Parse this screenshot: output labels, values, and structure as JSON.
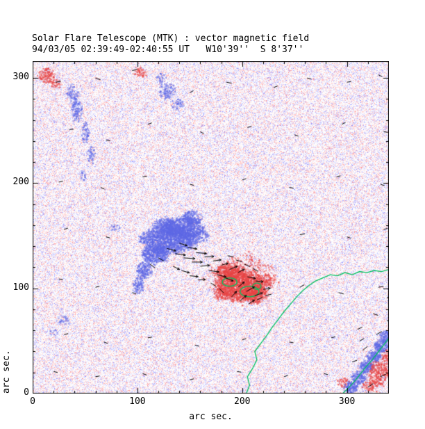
{
  "chart_data": {
    "type": "heatmap",
    "description": "Solar vector magnetogram: red = positive polarity, blue = negative polarity, green = magnetic neutral lines, black segments = transverse field vectors, speckled background = noise-level field",
    "title": "Solar Flare Telescope (MTK) : vector magnetic field",
    "subtitle": "94/03/05 02:39:49-02:40:55 UT   W10'39''  S 8'37''",
    "xlabel": "arc sec.",
    "ylabel": "arc sec.",
    "xlim": [
      0,
      340
    ],
    "ylim": [
      0,
      316
    ],
    "xticks": [
      0,
      100,
      200,
      300
    ],
    "yticks": [
      0,
      100,
      200,
      300
    ],
    "minor_tick_step": 20,
    "seed": 19940305,
    "colors": {
      "positive": "#e84646",
      "negative": "#5f69e6",
      "neutral_line": "#00c060",
      "vector": "#000000",
      "noise_red": "#ffb4b4",
      "noise_blue": "#b4b4ff",
      "axis": "#000000",
      "background": "#ffffff"
    },
    "regions_format": [
      "polarity",
      "cx",
      "cy",
      "rx",
      "ry",
      "density"
    ],
    "regions": [
      [
        -1,
        130,
        147,
        26,
        13,
        3.0
      ],
      [
        -1,
        143,
        158,
        18,
        10,
        2.6
      ],
      [
        -1,
        117,
        133,
        13,
        9,
        2.6
      ],
      [
        -1,
        106,
        118,
        7,
        9,
        2.0
      ],
      [
        -1,
        100,
        103,
        5,
        8,
        1.5
      ],
      [
        -1,
        152,
        168,
        10,
        7,
        1.6
      ],
      [
        -1,
        160,
        151,
        8,
        6,
        1.2
      ],
      [
        -1,
        126,
        160,
        12,
        8,
        1.8
      ],
      [
        -1,
        42,
        270,
        5,
        12,
        1.3
      ],
      [
        -1,
        50,
        248,
        4,
        10,
        1.1
      ],
      [
        -1,
        38,
        286,
        6,
        8,
        1.0
      ],
      [
        -1,
        55,
        228,
        4,
        8,
        0.9
      ],
      [
        -1,
        48,
        208,
        3,
        6,
        0.8
      ],
      [
        -1,
        128,
        288,
        8,
        7,
        1.2
      ],
      [
        -1,
        138,
        276,
        6,
        6,
        0.9
      ],
      [
        -1,
        122,
        300,
        5,
        5,
        0.8
      ],
      [
        -1,
        78,
        158,
        5,
        4,
        0.7
      ],
      [
        -1,
        28,
        70,
        7,
        5,
        0.6
      ],
      [
        -1,
        20,
        58,
        4,
        4,
        0.5
      ],
      [
        -1,
        303,
        6,
        7,
        6,
        2.6
      ],
      [
        -1,
        311,
        16,
        7,
        6,
        2.6
      ],
      [
        -1,
        318,
        26,
        7,
        6,
        2.6
      ],
      [
        -1,
        325,
        36,
        7,
        6,
        2.6
      ],
      [
        -1,
        332,
        46,
        7,
        6,
        2.6
      ],
      [
        -1,
        338,
        55,
        7,
        6,
        2.6
      ],
      [
        1,
        197,
        104,
        22,
        15,
        2.8
      ],
      [
        1,
        185,
        116,
        12,
        8,
        2.0
      ],
      [
        1,
        212,
        95,
        12,
        9,
        2.2
      ],
      [
        1,
        200,
        110,
        32,
        22,
        0.55
      ],
      [
        1,
        222,
        108,
        8,
        6,
        1.0
      ],
      [
        1,
        180,
        95,
        8,
        7,
        1.2
      ],
      [
        1,
        13,
        303,
        8,
        7,
        1.6
      ],
      [
        1,
        22,
        295,
        5,
        5,
        0.9
      ],
      [
        1,
        102,
        306,
        7,
        5,
        0.9
      ],
      [
        1,
        330,
        20,
        10,
        12,
        1.4
      ],
      [
        1,
        322,
        8,
        8,
        6,
        1.2
      ],
      [
        1,
        338,
        35,
        6,
        8,
        1.2
      ],
      [
        1,
        295,
        12,
        6,
        5,
        0.8
      ]
    ],
    "neutral_lines": [
      [
        [
          204,
          0
        ],
        [
          207,
          8
        ],
        [
          205,
          16
        ],
        [
          210,
          24
        ],
        [
          214,
          32
        ],
        [
          212,
          40
        ],
        [
          218,
          48
        ],
        [
          224,
          56
        ],
        [
          228,
          62
        ],
        [
          234,
          70
        ],
        [
          240,
          78
        ],
        [
          247,
          86
        ],
        [
          252,
          92
        ],
        [
          258,
          98
        ],
        [
          264,
          103
        ],
        [
          270,
          107
        ],
        [
          277,
          110
        ],
        [
          284,
          113
        ],
        [
          291,
          112
        ],
        [
          298,
          115
        ],
        [
          305,
          113
        ],
        [
          312,
          116
        ],
        [
          319,
          115
        ],
        [
          326,
          117
        ],
        [
          333,
          116
        ],
        [
          340,
          118
        ]
      ],
      [
        [
          296,
          0
        ],
        [
          303,
          7
        ],
        [
          310,
          15
        ],
        [
          317,
          24
        ],
        [
          324,
          32
        ],
        [
          331,
          41
        ],
        [
          338,
          50
        ],
        [
          340,
          53
        ]
      ]
    ],
    "contour_rings_format": [
      "cx",
      "cy",
      "rx",
      "ry"
    ],
    "contour_rings": [
      [
        188,
        106,
        7,
        4
      ],
      [
        207,
        97,
        9,
        5
      ],
      [
        214,
        102,
        4,
        3
      ]
    ],
    "vectors_format": [
      "x",
      "y",
      "angle_deg",
      "length_arcsec"
    ],
    "vectors": [
      [
        128,
        138,
        -15,
        9
      ],
      [
        136,
        133,
        -8,
        10
      ],
      [
        144,
        129,
        -4,
        11
      ],
      [
        152,
        125,
        0,
        10
      ],
      [
        160,
        121,
        6,
        9
      ],
      [
        168,
        117,
        -8,
        10
      ],
      [
        176,
        113,
        -14,
        9
      ],
      [
        184,
        110,
        -22,
        8
      ],
      [
        140,
        143,
        -18,
        8
      ],
      [
        148,
        139,
        -10,
        9
      ],
      [
        156,
        134,
        -5,
        10
      ],
      [
        164,
        130,
        2,
        9
      ],
      [
        172,
        126,
        8,
        8
      ],
      [
        180,
        122,
        16,
        7
      ],
      [
        188,
        118,
        22,
        8
      ],
      [
        196,
        115,
        28,
        7
      ],
      [
        134,
        121,
        -26,
        7
      ],
      [
        142,
        117,
        -16,
        8
      ],
      [
        150,
        112,
        -6,
        8
      ],
      [
        158,
        108,
        4,
        7
      ],
      [
        120,
        129,
        -30,
        6
      ],
      [
        112,
        123,
        -36,
        6
      ],
      [
        196,
        101,
        40,
        8
      ],
      [
        204,
        97,
        30,
        9
      ],
      [
        212,
        93,
        20,
        8
      ],
      [
        220,
        99,
        10,
        7
      ],
      [
        205,
        111,
        -12,
        8
      ],
      [
        213,
        107,
        -6,
        7
      ],
      [
        190,
        92,
        48,
        7
      ],
      [
        198,
        88,
        42,
        8
      ],
      [
        206,
        85,
        34,
        7
      ],
      [
        214,
        89,
        24,
        6
      ],
      [
        222,
        93,
        14,
        6
      ],
      [
        178,
        100,
        -45,
        6
      ],
      [
        170,
        105,
        -30,
        6
      ],
      [
        186,
        131,
        -10,
        6
      ],
      [
        194,
        127,
        -16,
        6
      ],
      [
        202,
        123,
        -22,
        6
      ],
      [
        210,
        119,
        -28,
        6
      ],
      [
        22,
        296,
        10,
        5
      ],
      [
        60,
        300,
        -20,
        5
      ],
      [
        95,
        307,
        15,
        5
      ],
      [
        150,
        286,
        30,
        4
      ],
      [
        185,
        296,
        -10,
        5
      ],
      [
        230,
        291,
        20,
        4
      ],
      [
        262,
        300,
        -15,
        4
      ],
      [
        300,
        296,
        10,
        4
      ],
      [
        330,
        303,
        -25,
        4
      ],
      [
        35,
        251,
        5,
        4
      ],
      [
        70,
        241,
        -10,
        4
      ],
      [
        110,
        256,
        20,
        4
      ],
      [
        160,
        249,
        -30,
        4
      ],
      [
        205,
        253,
        15,
        4
      ],
      [
        250,
        246,
        -20,
        4
      ],
      [
        295,
        256,
        25,
        4
      ],
      [
        335,
        249,
        -10,
        4
      ],
      [
        25,
        201,
        15,
        4
      ],
      [
        65,
        196,
        -25,
        4
      ],
      [
        105,
        206,
        10,
        4
      ],
      [
        150,
        199,
        -15,
        4
      ],
      [
        200,
        203,
        20,
        4
      ],
      [
        245,
        196,
        -10,
        4
      ],
      [
        290,
        206,
        15,
        4
      ],
      [
        332,
        199,
        -20,
        4
      ],
      [
        30,
        156,
        20,
        4
      ],
      [
        70,
        149,
        -15,
        4
      ],
      [
        255,
        151,
        10,
        5
      ],
      [
        300,
        149,
        -20,
        4
      ],
      [
        335,
        156,
        15,
        4
      ],
      [
        25,
        109,
        -10,
        4
      ],
      [
        60,
        101,
        15,
        4
      ],
      [
        95,
        96,
        -20,
        4
      ],
      [
        255,
        101,
        30,
        5
      ],
      [
        292,
        96,
        -15,
        5
      ],
      [
        330,
        101,
        10,
        5
      ],
      [
        30,
        56,
        15,
        4
      ],
      [
        68,
        49,
        -20,
        4
      ],
      [
        110,
        53,
        10,
        4
      ],
      [
        155,
        46,
        -15,
        4
      ],
      [
        200,
        51,
        20,
        4
      ],
      [
        245,
        49,
        -10,
        4
      ],
      [
        285,
        53,
        15,
        4
      ],
      [
        20,
        21,
        -15,
        4
      ],
      [
        60,
        16,
        10,
        4
      ],
      [
        105,
        19,
        -20,
        4
      ],
      [
        150,
        13,
        15,
        4
      ],
      [
        195,
        21,
        -10,
        4
      ],
      [
        240,
        16,
        20,
        4
      ],
      [
        278,
        19,
        -15,
        4
      ],
      [
        310,
        61,
        25,
        5
      ],
      [
        325,
        76,
        -20,
        5
      ],
      [
        338,
        91,
        15,
        5
      ],
      [
        315,
        41,
        40,
        6
      ],
      [
        328,
        56,
        30,
        6
      ],
      [
        338,
        69,
        20,
        6
      ],
      [
        320,
        6,
        35,
        6
      ],
      [
        332,
        16,
        25,
        6
      ],
      [
        340,
        29,
        15,
        6
      ],
      [
        305,
        30,
        20,
        5
      ],
      [
        312,
        50,
        28,
        5
      ]
    ]
  }
}
